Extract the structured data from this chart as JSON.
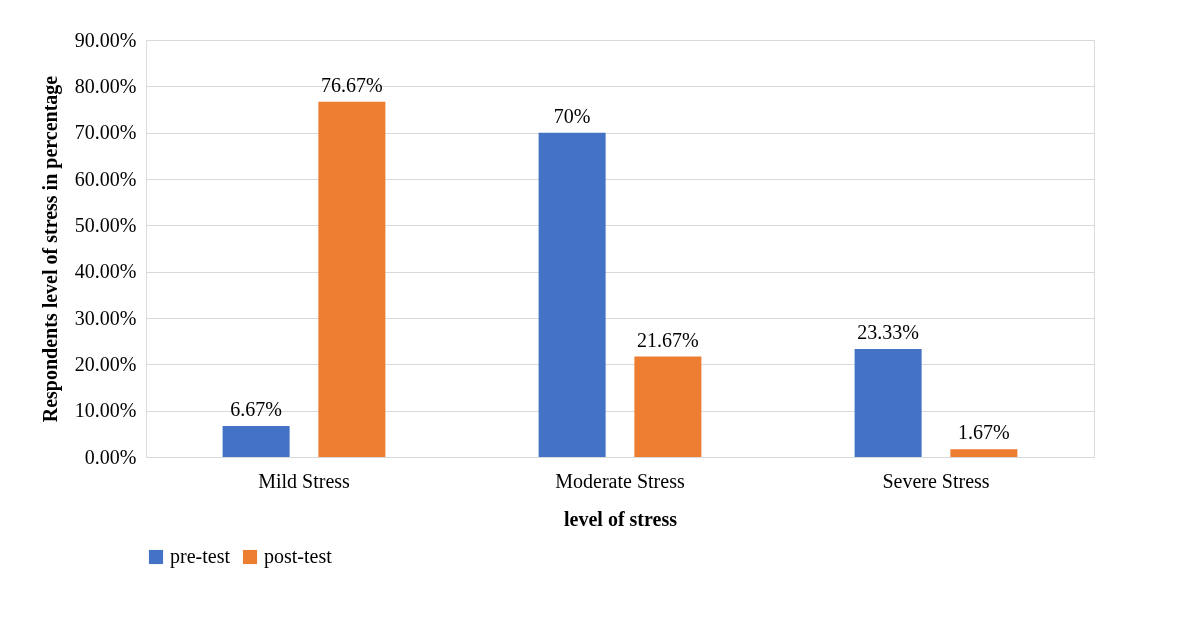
{
  "chart_data": {
    "type": "bar",
    "xlabel": "level of stress",
    "ylabel": "Respondents level of  stress in percentage",
    "categories": [
      "Mild Stress",
      "Moderate Stress",
      "Severe Stress"
    ],
    "series": [
      {
        "name": "pre-test",
        "color": "#4472c4",
        "values": [
          6.67,
          70,
          23.33
        ],
        "value_labels": [
          "6.67%",
          "70%",
          "23.33%"
        ]
      },
      {
        "name": "post-test",
        "color": "#ed7d31",
        "values": [
          76.67,
          21.67,
          1.67
        ],
        "value_labels": [
          "76.67%",
          "21.67%",
          "1.67%"
        ]
      }
    ],
    "ylim": [
      0,
      90
    ],
    "yticks": [
      {
        "value": 0,
        "label": "0.00%"
      },
      {
        "value": 10,
        "label": "10.00%"
      },
      {
        "value": 20,
        "label": "20.00%"
      },
      {
        "value": 30,
        "label": "30.00%"
      },
      {
        "value": 40,
        "label": "40.00%"
      },
      {
        "value": 50,
        "label": "50.00%"
      },
      {
        "value": 60,
        "label": "60.00%"
      },
      {
        "value": 70,
        "label": "70.00%"
      },
      {
        "value": 80,
        "label": "80.00%"
      },
      {
        "value": 90,
        "label": "90.00%"
      }
    ],
    "grid": "y",
    "legend": "bottom"
  }
}
